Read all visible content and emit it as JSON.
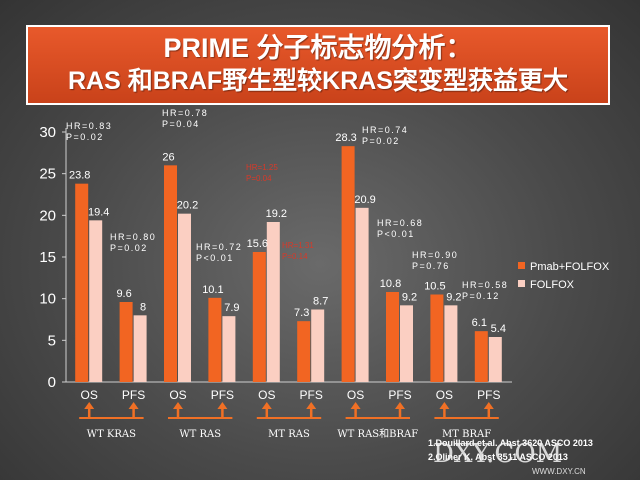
{
  "title": {
    "line1": "PRIME 分子标志物分析：",
    "line2": "RAS 和BRAF野生型较KRAS突变型获益更大"
  },
  "colors": {
    "pmab": "#f26522",
    "folfox": "#fbcfc2",
    "arrow": "#f07025",
    "stat_red": "#d63a2a"
  },
  "chart_data": {
    "type": "bar",
    "ylim": [
      0,
      30
    ],
    "yticks": [
      0,
      5,
      10,
      15,
      20,
      25,
      30
    ],
    "categories": [
      "OS",
      "PFS",
      "OS",
      "PFS",
      "OS",
      "PFS",
      "OS",
      "PFS",
      "OS",
      "PFS"
    ],
    "series": [
      {
        "name": "Pmab+FOLFOX",
        "values": [
          23.8,
          9.6,
          26,
          10.1,
          15.6,
          7.3,
          28.3,
          10.8,
          10.5,
          6.1
        ]
      },
      {
        "name": "FOLFOX",
        "values": [
          19.4,
          8,
          20.2,
          7.9,
          19.2,
          8.7,
          20.9,
          9.2,
          9.2,
          5.4
        ]
      }
    ],
    "value_labels": [
      [
        "23.8",
        "9.6",
        "26",
        "10.1",
        "15.6",
        "7.3",
        "28.3",
        "10.8",
        "10.5",
        "6.1"
      ],
      [
        "19.4",
        "8",
        "20.2",
        "7.9",
        "19.2",
        "8.7",
        "20.9",
        "9.2",
        "9.2",
        "5.4"
      ]
    ],
    "groups": [
      "WT  KRAS",
      "WT  RAS",
      "MT  RAS",
      "WT RAS和BRAF",
      "MT  BRAF"
    ],
    "annotations": [
      {
        "bar": 0,
        "line1": "HR=0.83",
        "line2": "P=0.02",
        "color": "white"
      },
      {
        "bar": 1,
        "line1": "HR=0.80",
        "line2": "P=0.02",
        "color": "white"
      },
      {
        "bar": 2,
        "line1": "HR=0.78",
        "line2": "P=0.04",
        "color": "white"
      },
      {
        "bar": 3,
        "line1": "HR=0.72",
        "line2": "P<0.01",
        "color": "white"
      },
      {
        "bar": 4,
        "line1": "HR=1.25",
        "line2": "P=0.04",
        "color": "red"
      },
      {
        "bar": 5,
        "line1": "HR=1.31",
        "line2": "P=0.14",
        "color": "red"
      },
      {
        "bar": 6,
        "line1": "HR=0.74",
        "line2": "P=0.02",
        "color": "white"
      },
      {
        "bar": 7,
        "line1": "HR=0.68",
        "line2": "P<0.01",
        "color": "white"
      },
      {
        "bar": 8,
        "line1": "HR=0.90",
        "line2": "P=0.76",
        "color": "white"
      },
      {
        "bar": 9,
        "line1": "HR=0.58",
        "line2": "P=0.12",
        "color": "white"
      }
    ],
    "legend": [
      "Pmab+FOLFOX",
      "FOLFOX"
    ],
    "legend_position": "right"
  },
  "sources": [
    "1.Douillard   et al. Abst 3620 ASCO 2013",
    "2.Oliner K. Abst 3511 ASCO 2013"
  ],
  "watermark": {
    "main": "DXY.COM",
    "sub": "WWW.DXY.CN"
  }
}
